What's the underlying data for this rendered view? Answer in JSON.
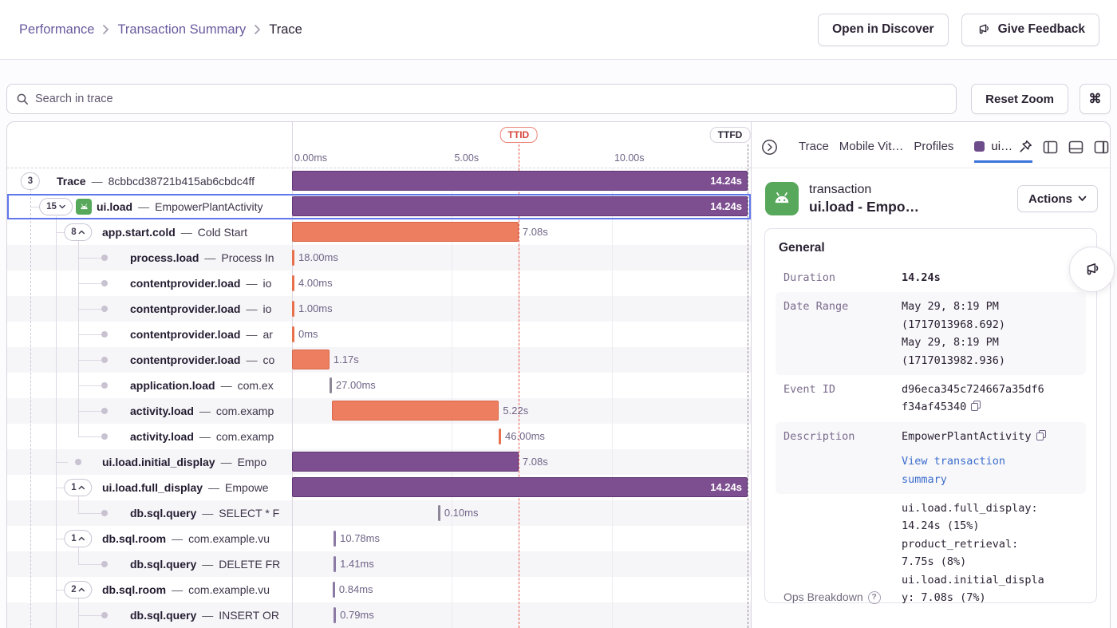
{
  "breadcrumb": {
    "items": [
      "Performance",
      "Transaction Summary",
      "Trace"
    ]
  },
  "header_actions": {
    "open_in_discover": "Open in Discover",
    "give_feedback": "Give Feedback"
  },
  "toolbar": {
    "search_placeholder": "Search in trace",
    "reset_zoom": "Reset Zoom",
    "shortcut_key": "⌘"
  },
  "timeline": {
    "duration_s": 14.24,
    "ticks": [
      {
        "label": "0.00ms",
        "s": 0
      },
      {
        "label": "5.00s",
        "s": 5
      },
      {
        "label": "10.00s",
        "s": 10
      }
    ],
    "markers": [
      {
        "label": "TTID",
        "s": 7.08,
        "style": "alert"
      },
      {
        "label": "TTFD",
        "s": 14.24,
        "style": "neutral"
      }
    ]
  },
  "rows": [
    {
      "badge": "3",
      "chevron": null,
      "dot": false,
      "level": 0,
      "op": "Trace",
      "desc": "8cbbcd38721b415ab6cbdc4ff",
      "icon": null,
      "selected": false,
      "bar": {
        "start": 0,
        "dur": 14.24,
        "kind": "purple",
        "label": "14.24s",
        "inside": true
      }
    },
    {
      "badge": "15",
      "chevron": "down",
      "dot": false,
      "level": 1,
      "op": "ui.load",
      "desc": "EmpowerPlantActivity",
      "icon": "android",
      "selected": true,
      "bar": {
        "start": 0,
        "dur": 14.24,
        "kind": "purple",
        "label": "14.24s",
        "inside": true
      }
    },
    {
      "badge": "8",
      "chevron": "up",
      "dot": false,
      "level": 2,
      "op": "app.start.cold",
      "desc": "Cold Start",
      "icon": null,
      "selected": false,
      "bar": {
        "start": 0,
        "dur": 7.08,
        "kind": "orange",
        "label": "7.08s",
        "inside": false
      }
    },
    {
      "badge": null,
      "chevron": null,
      "dot": true,
      "level": 3,
      "op": "process.load",
      "desc": "Process In",
      "icon": null,
      "selected": false,
      "bar": {
        "start": 0,
        "dur": 0.018,
        "kind": "tick-orange",
        "label": "18.00ms",
        "inside": false
      }
    },
    {
      "badge": null,
      "chevron": null,
      "dot": true,
      "level": 3,
      "op": "contentprovider.load",
      "desc": "io",
      "icon": null,
      "selected": false,
      "bar": {
        "start": 0,
        "dur": 0.004,
        "kind": "tick-orange",
        "label": "4.00ms",
        "inside": false
      }
    },
    {
      "badge": null,
      "chevron": null,
      "dot": true,
      "level": 3,
      "op": "contentprovider.load",
      "desc": "io",
      "icon": null,
      "selected": false,
      "bar": {
        "start": 0,
        "dur": 0.001,
        "kind": "tick-orange",
        "label": "1.00ms",
        "inside": false
      }
    },
    {
      "badge": null,
      "chevron": null,
      "dot": true,
      "level": 3,
      "op": "contentprovider.load",
      "desc": "ar",
      "icon": null,
      "selected": false,
      "bar": {
        "start": 0,
        "dur": 0,
        "kind": "tick-orange",
        "label": "0ms",
        "inside": false
      }
    },
    {
      "badge": null,
      "chevron": null,
      "dot": true,
      "level": 3,
      "op": "contentprovider.load",
      "desc": "co",
      "icon": null,
      "selected": false,
      "bar": {
        "start": 0,
        "dur": 1.17,
        "kind": "orange",
        "label": "1.17s",
        "inside": false
      }
    },
    {
      "badge": null,
      "chevron": null,
      "dot": true,
      "level": 3,
      "op": "application.load",
      "desc": "com.ex",
      "icon": null,
      "selected": false,
      "bar": {
        "start": 1.17,
        "dur": 0.027,
        "kind": "tick-gray",
        "label": "27.00ms",
        "inside": false
      }
    },
    {
      "badge": null,
      "chevron": null,
      "dot": true,
      "level": 3,
      "op": "activity.load",
      "desc": "com.examp",
      "icon": null,
      "selected": false,
      "bar": {
        "start": 1.25,
        "dur": 5.22,
        "kind": "orange",
        "label": "5.22s",
        "inside": false
      }
    },
    {
      "badge": null,
      "chevron": null,
      "dot": true,
      "level": 3,
      "op": "activity.load",
      "desc": "com.examp",
      "icon": null,
      "selected": false,
      "bar": {
        "start": 6.46,
        "dur": 0.046,
        "kind": "tick-orange",
        "label": "46.00ms",
        "inside": false
      }
    },
    {
      "badge": null,
      "chevron": null,
      "dot": true,
      "level": 2,
      "op": "ui.load.initial_display",
      "desc": "Empo",
      "icon": null,
      "selected": false,
      "bar": {
        "start": 0,
        "dur": 7.08,
        "kind": "purple",
        "label": "7.08s",
        "inside": false
      }
    },
    {
      "badge": "1",
      "chevron": "up",
      "dot": false,
      "level": 2,
      "op": "ui.load.full_display",
      "desc": "Empowe",
      "icon": null,
      "selected": false,
      "bar": {
        "start": 0,
        "dur": 14.24,
        "kind": "purple",
        "label": "14.24s",
        "inside": true
      }
    },
    {
      "badge": null,
      "chevron": null,
      "dot": true,
      "level": 3,
      "op": "db.sql.query",
      "desc": "SELECT * F",
      "icon": null,
      "selected": false,
      "bar": {
        "start": 4.56,
        "dur": 0.0001,
        "kind": "tick-gray",
        "label": "0.10ms",
        "inside": false
      }
    },
    {
      "badge": "1",
      "chevron": "up",
      "dot": false,
      "level": 2,
      "op": "db.sql.room",
      "desc": "com.example.vu",
      "icon": null,
      "selected": false,
      "bar": {
        "start": 1.3,
        "dur": 0.01078,
        "kind": "tick-purple",
        "label": "10.78ms",
        "inside": false
      }
    },
    {
      "badge": null,
      "chevron": null,
      "dot": true,
      "level": 3,
      "op": "db.sql.query",
      "desc": "DELETE FR",
      "icon": null,
      "selected": false,
      "bar": {
        "start": 1.3,
        "dur": 0.00141,
        "kind": "tick-purple",
        "label": "1.41ms",
        "inside": false
      }
    },
    {
      "badge": "2",
      "chevron": "up",
      "dot": false,
      "level": 2,
      "op": "db.sql.room",
      "desc": "com.example.vu",
      "icon": null,
      "selected": false,
      "bar": {
        "start": 1.27,
        "dur": 0.00084,
        "kind": "tick-purple",
        "label": "0.84ms",
        "inside": false
      }
    },
    {
      "badge": null,
      "chevron": null,
      "dot": true,
      "level": 3,
      "op": "db.sql.query",
      "desc": "INSERT OR",
      "icon": null,
      "selected": false,
      "bar": {
        "start": 1.3,
        "dur": 0.00079,
        "kind": "tick-purple",
        "label": "0.79ms",
        "inside": false
      }
    }
  ],
  "panel": {
    "tabs": [
      {
        "label": "Trace"
      },
      {
        "label": "Mobile Vit…"
      },
      {
        "label": "Profiles"
      },
      {
        "label": "ui…",
        "active": true,
        "swatch": "#6d4c8c"
      }
    ],
    "transaction": {
      "type_label": "transaction",
      "name": "ui.load - Empo…",
      "actions_label": "Actions"
    },
    "general": {
      "title": "General",
      "fields": [
        {
          "label": "Duration",
          "value": "14.24s",
          "bold": true
        },
        {
          "label": "Date Range",
          "lines": [
            "May 29, 8:19 PM",
            "(1717013968.692)",
            "May 29, 8:19 PM",
            "(1717013982.936)"
          ],
          "shaded": true
        },
        {
          "label": "Event ID",
          "value": "d96eca345c724667a35df6f34af45340",
          "copy": true
        },
        {
          "label": "Description",
          "value": "EmpowerPlantActivity",
          "copy": true,
          "link": "View transaction summary",
          "shaded": true
        },
        {
          "label": "Ops Breakdown",
          "help": true,
          "ops": [
            "ui.load.full_display: 14.24s (15%)",
            "product_retrieval: 7.75s (8%)",
            "ui.load.initial_display: 7.08s (7%)"
          ]
        }
      ]
    }
  },
  "colors": {
    "span_purple": "#7d4e90",
    "span_orange": "#ee7e60",
    "selection_blue": "#6078ec",
    "marker_red": "#e8564a",
    "link_blue": "#3b6ecc",
    "breadcrumb_purple": "#6a5a9e",
    "android_green": "#58a85c",
    "tab_underline_blue": "#3a73dc"
  }
}
